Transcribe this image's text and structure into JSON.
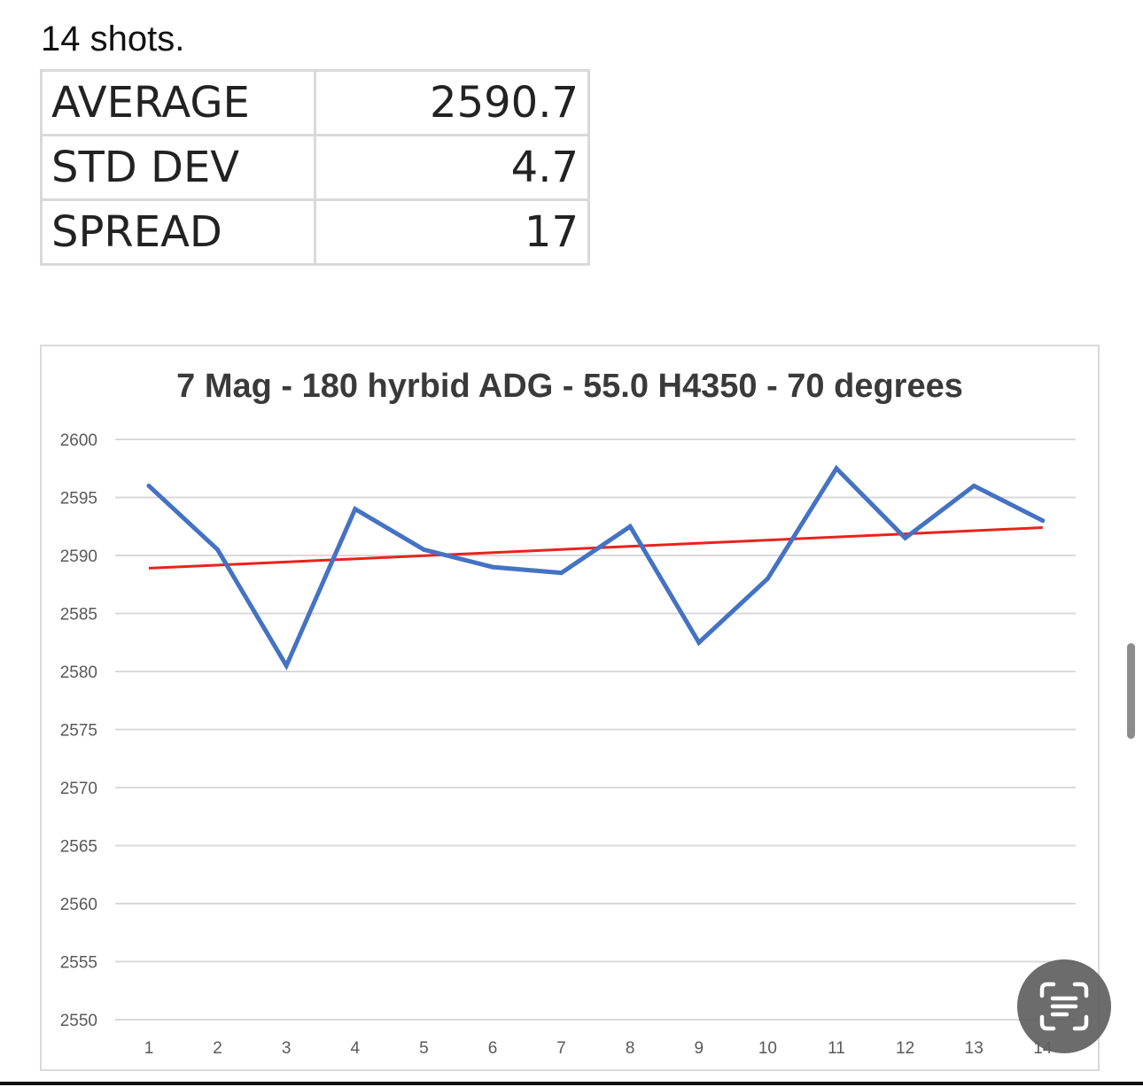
{
  "caption": "14 shots.",
  "stats": [
    {
      "label": "AVERAGE",
      "value": "2590.7"
    },
    {
      "label": "STD DEV",
      "value": "4.7"
    },
    {
      "label": "SPREAD",
      "value": "17"
    }
  ],
  "chart_data": {
    "type": "line",
    "title": "7 Mag - 180 hyrbid ADG - 55.0 H4350 - 70 degrees",
    "xlabel": "",
    "ylabel": "",
    "x": [
      1,
      2,
      3,
      4,
      5,
      6,
      7,
      8,
      9,
      10,
      11,
      12,
      13,
      14
    ],
    "x_tick_labels": [
      "1",
      "2",
      "3",
      "4",
      "5",
      "6",
      "7",
      "8",
      "9",
      "10",
      "11",
      "12",
      "13",
      "14"
    ],
    "y_tick_labels": [
      "2600",
      "2595",
      "2590",
      "2585",
      "2580",
      "2575",
      "2570",
      "2565",
      "2560",
      "2555",
      "2550"
    ],
    "ylim": [
      2550,
      2600
    ],
    "grid": true,
    "legend": "none",
    "series": [
      {
        "values": [
          2596,
          2590.5,
          2580.5,
          2594,
          2590.5,
          2589,
          2588.5,
          2592.5,
          2582.5,
          2588,
          2597.5,
          2591.5,
          2596,
          2593
        ],
        "color": "#4472c4"
      }
    ],
    "trendline": {
      "type": "linear",
      "start": 2588.9,
      "end": 2592.4,
      "color": "#e8231d"
    }
  },
  "icons": {
    "scan": "live-text-scan-icon"
  }
}
